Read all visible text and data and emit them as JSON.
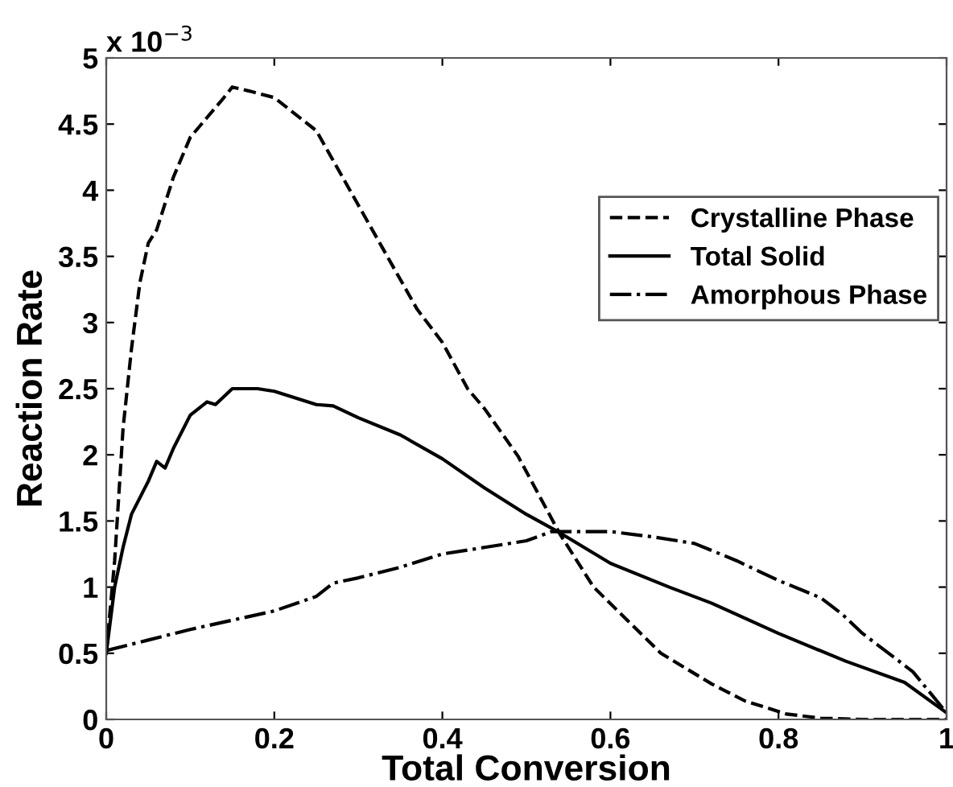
{
  "chart_data": {
    "type": "line",
    "xlabel": "Total Conversion",
    "ylabel": "Reaction Rate",
    "annotations": [
      "x 10$^{−3}$"
    ],
    "xlim": [
      0,
      1
    ],
    "xticks": [
      0,
      0.2,
      0.4,
      0.6,
      0.8,
      1
    ],
    "ylim": [
      0,
      5
    ],
    "yticks": [
      0,
      0.5,
      1,
      1.5,
      2,
      2.5,
      3,
      3.5,
      4,
      4.5,
      5
    ],
    "grid": false,
    "legend": "right",
    "series": [
      {
        "name": "Crystalline Phase",
        "color": "#000000",
        "line_style": "dashed",
        "x": [
          0,
          0.01,
          0.02,
          0.03,
          0.04,
          0.05,
          0.06,
          0.08,
          0.1,
          0.12,
          0.14,
          0.15,
          0.17,
          0.2,
          0.22,
          0.25,
          0.29,
          0.33,
          0.37,
          0.4,
          0.43,
          0.45,
          0.49,
          0.54,
          0.58,
          0.62,
          0.66,
          0.72,
          0.76,
          0.81,
          0.85,
          0.9,
          1.0
        ],
        "values": [
          0.5,
          1.2,
          2.2,
          2.8,
          3.3,
          3.6,
          3.7,
          4.1,
          4.4,
          4.55,
          4.7,
          4.78,
          4.75,
          4.7,
          4.6,
          4.45,
          4.0,
          3.55,
          3.1,
          2.85,
          2.5,
          2.35,
          1.99,
          1.4,
          1.0,
          0.75,
          0.5,
          0.27,
          0.14,
          0.04,
          0.01,
          0,
          0
        ]
      },
      {
        "name": "Total Solid",
        "color": "#000000",
        "line_style": "solid",
        "x": [
          0,
          0.01,
          0.02,
          0.03,
          0.05,
          0.06,
          0.07,
          0.08,
          0.1,
          0.12,
          0.13,
          0.15,
          0.18,
          0.2,
          0.25,
          0.27,
          0.3,
          0.35,
          0.4,
          0.45,
          0.5,
          0.54,
          0.6,
          0.67,
          0.72,
          0.8,
          0.88,
          0.95,
          1.0
        ],
        "values": [
          0.5,
          1.0,
          1.3,
          1.55,
          1.8,
          1.95,
          1.9,
          2.05,
          2.3,
          2.4,
          2.38,
          2.5,
          2.5,
          2.48,
          2.38,
          2.37,
          2.28,
          2.15,
          1.97,
          1.75,
          1.55,
          1.41,
          1.18,
          1.0,
          0.88,
          0.65,
          0.44,
          0.28,
          0.05
        ]
      },
      {
        "name": "Amorphous Phase",
        "color": "#000000",
        "line_style": "dashdot",
        "x": [
          0,
          0.05,
          0.1,
          0.15,
          0.2,
          0.25,
          0.27,
          0.3,
          0.35,
          0.4,
          0.45,
          0.5,
          0.53,
          0.55,
          0.6,
          0.65,
          0.7,
          0.75,
          0.8,
          0.85,
          0.875,
          0.9,
          0.96,
          1.0
        ],
        "values": [
          0.52,
          0.6,
          0.68,
          0.75,
          0.82,
          0.93,
          1.03,
          1.07,
          1.15,
          1.25,
          1.3,
          1.35,
          1.42,
          1.42,
          1.42,
          1.38,
          1.33,
          1.2,
          1.05,
          0.92,
          0.8,
          0.65,
          0.36,
          0.05
        ]
      }
    ]
  }
}
